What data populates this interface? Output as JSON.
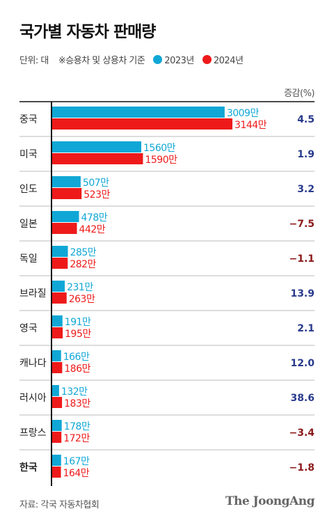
{
  "header": {
    "title": "국가별 자동차 판매량",
    "unit_label": "단위: 대",
    "note": "※승용차 및 상용차 기준"
  },
  "legend": [
    {
      "label": "2023년",
      "color": "#10a7d6"
    },
    {
      "label": "2024년",
      "color": "#ee1a1a"
    }
  ],
  "pct_header": "증감(%)",
  "footer": {
    "source": "자료: 각국 자동차협회",
    "logo": "The JoongAng"
  },
  "colors": {
    "bar_2023": "#10a7d6",
    "bar_2024": "#ee1a1a",
    "pct_positive": "#283a8c",
    "pct_negative": "#8b1a1a",
    "axis": "#111111",
    "divider": "#bbbbbb"
  },
  "chart_data": {
    "type": "bar",
    "orientation": "horizontal",
    "categories": [
      "중국",
      "미국",
      "인도",
      "일본",
      "독일",
      "브라질",
      "영국",
      "캐나다",
      "러시아",
      "프랑스",
      "한국"
    ],
    "series": [
      {
        "name": "2023년",
        "values": [
          3009,
          1560,
          507,
          478,
          285,
          231,
          191,
          166,
          132,
          178,
          167
        ]
      },
      {
        "name": "2024년",
        "values": [
          3144,
          1590,
          523,
          442,
          282,
          263,
          195,
          186,
          183,
          172,
          164
        ]
      }
    ],
    "value_labels": {
      "2023년": [
        "3009만",
        "1560만",
        "507만",
        "478만",
        "285만",
        "231만",
        "191만",
        "166만",
        "132만",
        "178만",
        "167만"
      ],
      "2024년": [
        "3144만",
        "1590만",
        "523만",
        "442만",
        "282만",
        "263만",
        "195만",
        "186만",
        "183만",
        "172만",
        "164만"
      ]
    },
    "change_pct": [
      4.5,
      1.9,
      3.2,
      -7.5,
      -1.1,
      13.9,
      2.1,
      12.0,
      38.6,
      -3.4,
      -1.8
    ],
    "change_labels": [
      "4.5",
      "1.9",
      "3.2",
      "−7.5",
      "−1.1",
      "13.9",
      "2.1",
      "12.0",
      "38.6",
      "−3.4",
      "−1.8"
    ],
    "highlight_category": "한국",
    "xlim": [
      0,
      3144
    ]
  }
}
